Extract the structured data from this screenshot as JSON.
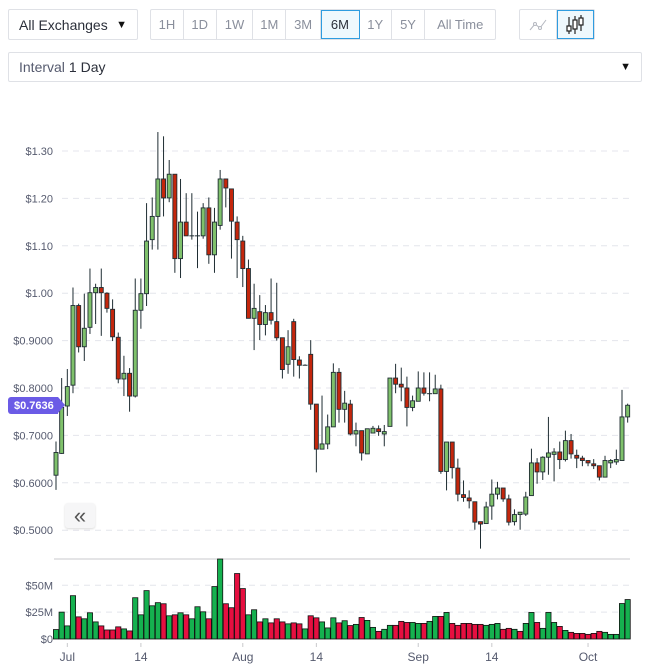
{
  "toolbar": {
    "exchange_select": "All Exchanges",
    "ranges": [
      "1H",
      "1D",
      "1W",
      "1M",
      "3M",
      "6M",
      "1Y",
      "5Y",
      "All Time"
    ],
    "active_range": "6M",
    "chart_types": [
      "line-chart-icon",
      "candlestick-icon"
    ],
    "active_chart_type": "candlestick-icon",
    "interval_label": "Interval",
    "interval_value": "1 Day"
  },
  "current_price_label": "$0.7636",
  "collapse_icon": "double-chevron-left-icon",
  "colors": {
    "up_candle": "#7fc16b",
    "down_candle": "#c4260c",
    "up_volume": "#15b14f",
    "down_volume": "#e60f40",
    "price_badge": "#6b5be6",
    "active_border": "#2e9ce0"
  },
  "chart_data": {
    "type": "candlestick",
    "title": "",
    "price_axis": {
      "ticks": [
        "$1.30",
        "$1.20",
        "$1.10",
        "$1.00",
        "$0.9000",
        "$0.8000",
        "$0.7000",
        "$0.6000",
        "$0.5000"
      ],
      "tick_values": [
        1.3,
        1.2,
        1.1,
        1.0,
        0.9,
        0.8,
        0.7,
        0.6,
        0.5
      ],
      "range": [
        0.46,
        1.35
      ]
    },
    "volume_axis": {
      "ticks": [
        "$50M",
        "$25M",
        "$0"
      ],
      "tick_values": [
        50,
        25,
        0
      ],
      "unit": "M"
    },
    "x_axis": {
      "labels": [
        "Jul",
        "14",
        "Aug",
        "14",
        "Sep",
        "14",
        "Oct"
      ],
      "label_candle_index": [
        2,
        15,
        33,
        46,
        64,
        77,
        94
      ]
    },
    "grid": true,
    "ohlc_fields": [
      "open",
      "high",
      "low",
      "close"
    ],
    "ohlc": [
      [
        0.616,
        0.687,
        0.585,
        0.664
      ],
      [
        0.662,
        0.821,
        0.661,
        0.759
      ],
      [
        0.762,
        0.84,
        0.741,
        0.803
      ],
      [
        0.806,
        1.012,
        0.789,
        0.974
      ],
      [
        0.974,
        0.978,
        0.875,
        0.887
      ],
      [
        0.887,
        0.999,
        0.857,
        0.926
      ],
      [
        0.928,
        1.052,
        0.914,
        1.001
      ],
      [
        1.001,
        1.02,
        0.935,
        1.012
      ],
      [
        1.012,
        1.052,
        0.91,
        1.001
      ],
      [
        1.0,
        1.002,
        0.959,
        0.968
      ],
      [
        0.966,
        0.987,
        0.899,
        0.908
      ],
      [
        0.907,
        0.917,
        0.81,
        0.819
      ],
      [
        0.819,
        0.868,
        0.783,
        0.831
      ],
      [
        0.831,
        0.842,
        0.75,
        0.783
      ],
      [
        0.783,
        1.031,
        0.78,
        0.964
      ],
      [
        0.964,
        1.031,
        0.925,
        0.999
      ],
      [
        0.999,
        1.19,
        0.973,
        1.11
      ],
      [
        1.113,
        1.202,
        1.092,
        1.162
      ],
      [
        1.162,
        1.34,
        1.092,
        1.241
      ],
      [
        1.241,
        1.331,
        1.162,
        1.201
      ],
      [
        1.201,
        1.281,
        1.192,
        1.251
      ],
      [
        1.251,
        1.251,
        1.043,
        1.073
      ],
      [
        1.073,
        1.241,
        1.032,
        1.15
      ],
      [
        1.15,
        1.211,
        1.121,
        1.121
      ],
      [
        1.121,
        1.211,
        1.113,
        1.121
      ],
      [
        1.121,
        1.172,
        1.053,
        1.121
      ],
      [
        1.121,
        1.19,
        1.115,
        1.18
      ],
      [
        1.18,
        1.202,
        1.062,
        1.081
      ],
      [
        1.081,
        1.18,
        1.043,
        1.15
      ],
      [
        1.143,
        1.26,
        1.134,
        1.241
      ],
      [
        1.241,
        1.241,
        1.181,
        1.222
      ],
      [
        1.22,
        1.22,
        1.073,
        1.152
      ],
      [
        1.15,
        1.162,
        1.032,
        1.113
      ],
      [
        1.11,
        1.121,
        1.013,
        1.052
      ],
      [
        1.052,
        1.071,
        0.947,
        0.947
      ],
      [
        0.947,
        1.02,
        0.88,
        0.968
      ],
      [
        0.961,
        0.996,
        0.901,
        0.934
      ],
      [
        0.934,
        0.975,
        0.911,
        0.959
      ],
      [
        0.959,
        1.031,
        0.934,
        0.943
      ],
      [
        0.94,
        1.022,
        0.9,
        0.906
      ],
      [
        0.906,
        0.906,
        0.82,
        0.839
      ],
      [
        0.85,
        0.922,
        0.83,
        0.887
      ],
      [
        0.94,
        0.946,
        0.824,
        0.86
      ],
      [
        0.859,
        0.867,
        0.82,
        0.848
      ],
      [
        0.848,
        0.85,
        0.848,
        0.848
      ],
      [
        0.871,
        0.901,
        0.754,
        0.766
      ],
      [
        0.766,
        0.766,
        0.622,
        0.671
      ],
      [
        0.671,
        0.784,
        0.671,
        0.682
      ],
      [
        0.682,
        0.744,
        0.671,
        0.718
      ],
      [
        0.718,
        0.852,
        0.718,
        0.833
      ],
      [
        0.833,
        0.842,
        0.727,
        0.755
      ],
      [
        0.755,
        0.794,
        0.727,
        0.768
      ],
      [
        0.766,
        0.775,
        0.7,
        0.703
      ],
      [
        0.703,
        0.727,
        0.677,
        0.71
      ],
      [
        0.71,
        0.71,
        0.647,
        0.663
      ],
      [
        0.661,
        0.714,
        0.661,
        0.714
      ],
      [
        0.705,
        0.72,
        0.705,
        0.715
      ],
      [
        0.714,
        0.721,
        0.699,
        0.708
      ],
      [
        0.703,
        0.722,
        0.677,
        0.708
      ],
      [
        0.719,
        0.821,
        0.719,
        0.821
      ],
      [
        0.821,
        0.851,
        0.789,
        0.808
      ],
      [
        0.808,
        0.843,
        0.772,
        0.802
      ],
      [
        0.8,
        0.824,
        0.719,
        0.759
      ],
      [
        0.759,
        0.784,
        0.751,
        0.773
      ],
      [
        0.772,
        0.835,
        0.772,
        0.8
      ],
      [
        0.8,
        0.833,
        0.784,
        0.789
      ],
      [
        0.788,
        0.833,
        0.772,
        0.788
      ],
      [
        0.788,
        0.828,
        0.788,
        0.798
      ],
      [
        0.798,
        0.807,
        0.619,
        0.624
      ],
      [
        0.624,
        0.686,
        0.584,
        0.686
      ],
      [
        0.686,
        0.686,
        0.609,
        0.632
      ],
      [
        0.631,
        0.651,
        0.561,
        0.576
      ],
      [
        0.575,
        0.605,
        0.56,
        0.569
      ],
      [
        0.568,
        0.584,
        0.546,
        0.562
      ],
      [
        0.56,
        0.56,
        0.501,
        0.517
      ],
      [
        0.518,
        0.518,
        0.461,
        0.513
      ],
      [
        0.514,
        0.56,
        0.514,
        0.549
      ],
      [
        0.551,
        0.607,
        0.522,
        0.576
      ],
      [
        0.576,
        0.602,
        0.565,
        0.589
      ],
      [
        0.589,
        0.589,
        0.56,
        0.566
      ],
      [
        0.566,
        0.575,
        0.51,
        0.517
      ],
      [
        0.518,
        0.544,
        0.51,
        0.533
      ],
      [
        0.533,
        0.538,
        0.501,
        0.538
      ],
      [
        0.534,
        0.581,
        0.53,
        0.57
      ],
      [
        0.573,
        0.672,
        0.573,
        0.642
      ],
      [
        0.642,
        0.652,
        0.598,
        0.623
      ],
      [
        0.623,
        0.656,
        0.606,
        0.654
      ],
      [
        0.654,
        0.739,
        0.617,
        0.663
      ],
      [
        0.66,
        0.673,
        0.603,
        0.665
      ],
      [
        0.665,
        0.687,
        0.629,
        0.649
      ],
      [
        0.649,
        0.71,
        0.645,
        0.689
      ],
      [
        0.689,
        0.703,
        0.651,
        0.661
      ],
      [
        0.658,
        0.67,
        0.631,
        0.652
      ],
      [
        0.652,
        0.657,
        0.635,
        0.647
      ],
      [
        0.647,
        0.647,
        0.635,
        0.642
      ],
      [
        0.64,
        0.65,
        0.629,
        0.636
      ],
      [
        0.636,
        0.636,
        0.605,
        0.612
      ],
      [
        0.612,
        0.657,
        0.612,
        0.647
      ],
      [
        0.642,
        0.65,
        0.631,
        0.647
      ],
      [
        0.644,
        0.67,
        0.638,
        0.649
      ],
      [
        0.647,
        0.796,
        0.647,
        0.739
      ],
      [
        0.739,
        0.767,
        0.727,
        0.7636
      ]
    ],
    "volume_m": [
      8.8,
      25,
      12.2,
      40.3,
      20.6,
      18.8,
      24.4,
      15.9,
      12.2,
      8.4,
      8.4,
      11.3,
      9.4,
      7.5,
      38.4,
      22.5,
      45,
      30.9,
      33.8,
      32.8,
      21.6,
      22.5,
      24.4,
      22.5,
      18.8,
      30,
      25.3,
      18.8,
      48.8,
      74.4,
      32.8,
      29.1,
      60.9,
      46.9,
      22.5,
      27.2,
      15.9,
      18.8,
      15,
      18.8,
      15.9,
      14.1,
      15,
      14.1,
      9.4,
      21.6,
      19.7,
      15.9,
      10.3,
      19.7,
      15,
      17,
      12.5,
      13.6,
      20,
      17.3,
      10.8,
      7.1,
      9,
      12.7,
      12.7,
      16.4,
      15.4,
      15.4,
      14.5,
      14.5,
      16.4,
      21,
      21,
      24.7,
      14.5,
      12.7,
      14.5,
      14.5,
      13.6,
      13.6,
      12.7,
      13.6,
      14.5,
      9,
      9.9,
      9,
      7.1,
      14.5,
      24.7,
      15.4,
      9.9,
      24.7,
      15.4,
      11.7,
      8,
      6.2,
      5.2,
      5.2,
      4.3,
      5.2,
      7.1,
      6.2,
      4.3,
      4.3,
      33,
      36.7
    ],
    "volume_up": [
      1,
      1,
      1,
      1,
      0,
      1,
      1,
      1,
      0,
      0,
      0,
      0,
      1,
      0,
      1,
      1,
      1,
      1,
      1,
      0,
      1,
      0,
      1,
      0,
      1,
      1,
      1,
      0,
      1,
      1,
      0,
      0,
      0,
      0,
      1,
      1,
      0,
      1,
      0,
      0,
      0,
      1,
      0,
      0,
      1,
      0,
      0,
      1,
      1,
      1,
      0,
      1,
      0,
      1,
      0,
      1,
      1,
      0,
      1,
      1,
      0,
      0,
      0,
      1,
      1,
      0,
      1,
      1,
      0,
      1,
      0,
      0,
      0,
      0,
      0,
      0,
      1,
      1,
      1,
      0,
      0,
      1,
      0,
      1,
      1,
      0,
      1,
      1,
      1,
      0,
      1,
      0,
      0,
      0,
      0,
      0,
      0,
      1,
      1,
      1,
      1,
      1
    ]
  }
}
